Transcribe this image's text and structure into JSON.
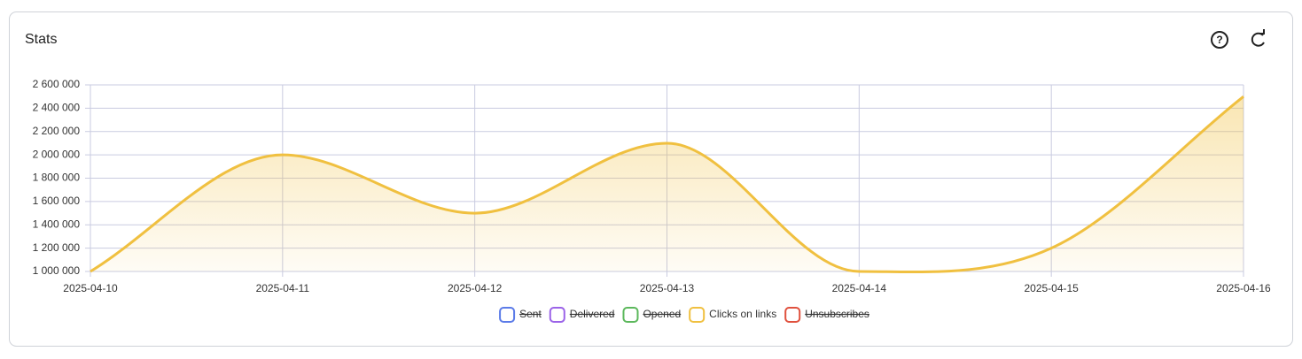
{
  "chart_data": {
    "type": "area",
    "title": "Stats",
    "x": [
      "2025-04-10",
      "2025-04-11",
      "2025-04-12",
      "2025-04-13",
      "2025-04-14",
      "2025-04-15",
      "2025-04-16"
    ],
    "series": [
      {
        "name": "Sent",
        "color": "#5b7be8",
        "hidden": true
      },
      {
        "name": "Delivered",
        "color": "#9b63e8",
        "hidden": true
      },
      {
        "name": "Opened",
        "color": "#5cb85c",
        "hidden": true
      },
      {
        "name": "Clicks on links",
        "color": "#f0c040",
        "values": [
          1000000,
          2000000,
          1500000,
          2100000,
          1000000,
          1200000,
          2500000
        ]
      },
      {
        "name": "Unsubscribes",
        "color": "#e0513e",
        "hidden": true
      }
    ],
    "ylim": [
      1000000,
      2600000
    ],
    "yticks": [
      {
        "value": 1000000,
        "label": "1 000 000"
      },
      {
        "value": 1200000,
        "label": "1 200 000"
      },
      {
        "value": 1400000,
        "label": "1 400 000"
      },
      {
        "value": 1600000,
        "label": "1 600 000"
      },
      {
        "value": 1800000,
        "label": "1 800 000"
      },
      {
        "value": 2000000,
        "label": "2 000 000"
      },
      {
        "value": 2200000,
        "label": "2 200 000"
      },
      {
        "value": 2400000,
        "label": "2 400 000"
      },
      {
        "value": 2600000,
        "label": "2 600 000"
      }
    ],
    "grid": true
  }
}
